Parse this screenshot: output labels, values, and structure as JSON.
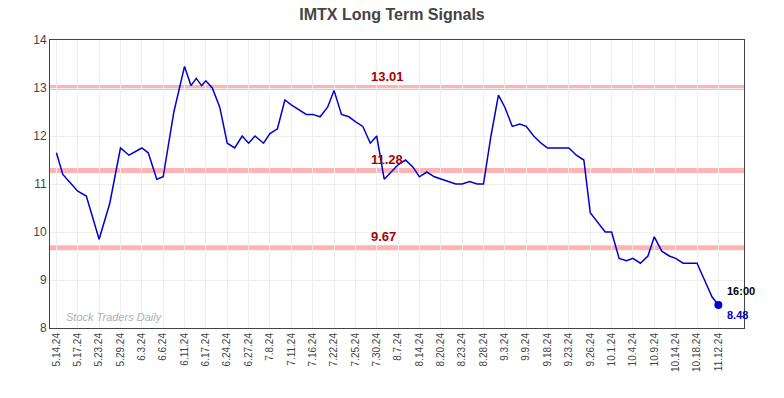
{
  "chart_data": {
    "type": "line",
    "title": "IMTX Long Term Signals",
    "x": [
      0,
      0.3,
      0.7,
      1.0,
      1.4,
      2.0,
      2.5,
      3.0,
      3.4,
      4.0,
      4.3,
      4.7,
      5.0,
      5.5,
      6.0,
      6.3,
      6.55,
      6.8,
      7.0,
      7.3,
      7.65,
      8.0,
      8.35,
      8.7,
      9.0,
      9.3,
      9.7,
      10.0,
      10.35,
      10.7,
      11.0,
      11.35,
      11.7,
      12.0,
      12.35,
      12.7,
      13.0,
      13.35,
      13.7,
      14.0,
      14.35,
      14.7,
      15.0,
      15.35,
      15.7,
      16.0,
      16.35,
      16.7,
      17.0,
      17.35,
      17.7,
      18.0,
      18.35,
      18.7,
      19.0,
      19.35,
      19.7,
      20.0,
      20.35,
      20.7,
      21.0,
      21.35,
      21.7,
      22.0,
      22.35,
      22.7,
      23.0,
      23.35,
      23.7,
      24.0,
      24.35,
      24.7,
      25.0,
      25.35,
      25.7,
      26.0,
      26.35,
      26.7,
      27.0,
      27.35,
      27.7,
      28.0,
      28.35,
      28.7,
      29.0,
      29.35,
      29.7,
      30.0,
      30.35,
      30.7,
      31.0
    ],
    "series": [
      {
        "color": "#0000CC",
        "values": [
          11.65,
          11.2,
          11.0,
          10.85,
          10.75,
          9.85,
          10.6,
          11.75,
          11.6,
          11.75,
          11.65,
          11.1,
          11.15,
          12.5,
          13.45,
          13.05,
          13.2,
          13.05,
          13.15,
          13.0,
          12.6,
          11.85,
          11.75,
          12.0,
          11.85,
          12.0,
          11.85,
          12.05,
          12.15,
          12.75,
          12.65,
          12.55,
          12.45,
          12.45,
          12.4,
          12.6,
          12.95,
          12.45,
          12.4,
          12.3,
          12.2,
          11.85,
          12.0,
          11.1,
          11.25,
          11.4,
          11.5,
          11.35,
          11.15,
          11.25,
          11.15,
          11.1,
          11.05,
          11.0,
          11.0,
          11.05,
          11.0,
          11.0,
          12.0,
          12.85,
          12.6,
          12.2,
          12.25,
          12.2,
          12.0,
          11.85,
          11.75,
          11.75,
          11.75,
          11.75,
          11.6,
          11.5,
          10.4,
          10.2,
          10.0,
          10.0,
          9.45,
          9.4,
          9.45,
          9.35,
          9.5,
          9.9,
          9.6,
          9.5,
          9.45,
          9.35,
          9.35,
          9.35,
          9.0,
          8.65,
          8.48
        ]
      }
    ],
    "xlim": [
      -0.3,
      32.2
    ],
    "xticks": [
      {
        "value": 0,
        "label": "5.14.24"
      },
      {
        "value": 1,
        "label": "5.17.24"
      },
      {
        "value": 2,
        "label": "5.23.24"
      },
      {
        "value": 3,
        "label": "5.29.24"
      },
      {
        "value": 4,
        "label": "6.3.24"
      },
      {
        "value": 5,
        "label": "6.6.24"
      },
      {
        "value": 6,
        "label": "6.11.24"
      },
      {
        "value": 7,
        "label": "6.17.24"
      },
      {
        "value": 8,
        "label": "6.24.24"
      },
      {
        "value": 9,
        "label": "6.27.24"
      },
      {
        "value": 10,
        "label": "7.8.24"
      },
      {
        "value": 11,
        "label": "7.11.24"
      },
      {
        "value": 12,
        "label": "7.16.24"
      },
      {
        "value": 13,
        "label": "7.22.24"
      },
      {
        "value": 14,
        "label": "7.25.24"
      },
      {
        "value": 15,
        "label": "7.30.24"
      },
      {
        "value": 16,
        "label": "8.7.24"
      },
      {
        "value": 17,
        "label": "8.14.24"
      },
      {
        "value": 18,
        "label": "8.20.24"
      },
      {
        "value": 19,
        "label": "8.23.24"
      },
      {
        "value": 20,
        "label": "8.28.24"
      },
      {
        "value": 21,
        "label": "9.3.24"
      },
      {
        "value": 22,
        "label": "9.9.24"
      },
      {
        "value": 23,
        "label": "9.18.24"
      },
      {
        "value": 24,
        "label": "9.23.24"
      },
      {
        "value": 25,
        "label": "9.26.24"
      },
      {
        "value": 26,
        "label": "10.1.24"
      },
      {
        "value": 27,
        "label": "10.4.24"
      },
      {
        "value": 28,
        "label": "10.9.24"
      },
      {
        "value": 29,
        "label": "10.14.24"
      },
      {
        "value": 30,
        "label": "10.18.24"
      },
      {
        "value": 31,
        "label": "11.12.24"
      }
    ],
    "ylim": [
      8,
      14
    ],
    "yticks": [
      8,
      9,
      10,
      11,
      12,
      13,
      14
    ],
    "grid": true,
    "hlines": [
      {
        "value": 13.01,
        "label": "13.01"
      },
      {
        "value": 11.28,
        "label": "11.28"
      },
      {
        "value": 9.67,
        "label": "9.67"
      }
    ],
    "hline_color": "#ffb3b3",
    "hline_label_color": "#aa0000",
    "annotations": [
      {
        "x": 31.0,
        "y": 8.48,
        "text": "16:00",
        "color": "#000000"
      },
      {
        "x": 31.0,
        "y": 8.48,
        "text": "8.48",
        "color": "#0000CC"
      }
    ],
    "watermark": {
      "text": "Stock Traders Daily",
      "color": "#b0b0b0"
    }
  }
}
